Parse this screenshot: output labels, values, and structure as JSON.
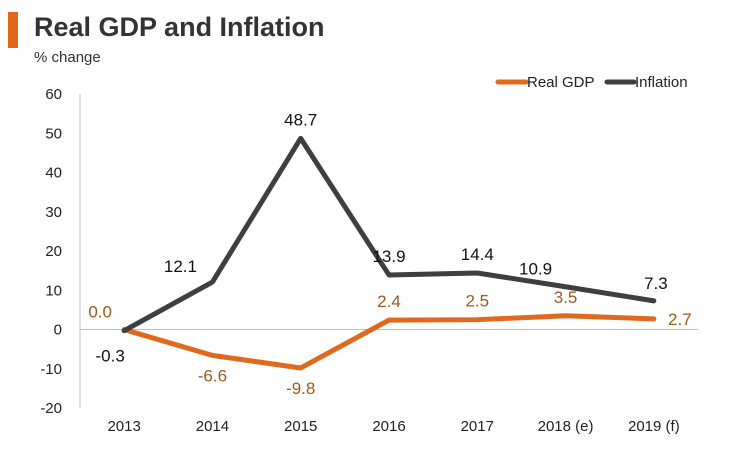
{
  "colors": {
    "accent": "#E1691E",
    "gdp": "#E1691E",
    "inflation": "#3F3F3F",
    "gdp_label": "#9C5A1E",
    "axis": "#BFBFBF"
  },
  "chart_data": {
    "type": "line",
    "title": "Real GDP and Inflation",
    "ylabel": "% change",
    "xlabel": "",
    "categories": [
      "2013",
      "2014",
      "2015",
      "2016",
      "2017",
      "2018 (e)",
      "2019 (f)"
    ],
    "ylim": [
      -20,
      60
    ],
    "yticks": [
      "60",
      "50",
      "40",
      "30",
      "20",
      "10",
      "0",
      "-10",
      "-20"
    ],
    "legend_position": "top-right",
    "series": [
      {
        "name": "Real GDP",
        "values": [
          0.0,
          -6.6,
          -9.8,
          2.4,
          2.5,
          3.5,
          2.7
        ],
        "labels": [
          "0.0",
          "-6.6",
          "-9.8",
          "2.4",
          "2.5",
          "3.5",
          "2.7"
        ]
      },
      {
        "name": "Inflation",
        "values": [
          -0.3,
          12.1,
          48.7,
          13.9,
          14.4,
          10.9,
          7.3
        ],
        "labels": [
          "-0.3",
          "12.1",
          "48.7",
          "13.9",
          "14.4",
          "10.9",
          "7.3"
        ]
      }
    ]
  }
}
